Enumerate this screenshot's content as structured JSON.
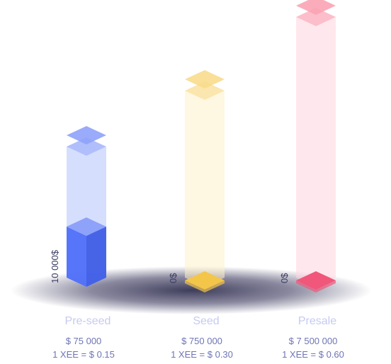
{
  "chart_data": {
    "type": "bar",
    "categories": [
      "Pre-seed",
      "Seed",
      "Presale"
    ],
    "series": [
      {
        "values": [
          75000,
          750000,
          7500000
        ]
      },
      {
        "values": [
          10000,
          0,
          0
        ]
      }
    ],
    "bars": [
      {
        "name": "Pre-seed",
        "target": "$ 75 000",
        "price": "1 XEE = $ 0.15",
        "raised": "10 000$",
        "raised_value": 10000,
        "goal_value": 75000,
        "color": "#4f6ff8",
        "light": "#b5c2fb",
        "cap": "#8ea2fa"
      },
      {
        "name": "Seed",
        "target": "$ 750 000",
        "price": "1 XEE = $ 0.30",
        "raised": "0$",
        "raised_value": 0,
        "goal_value": 750000,
        "color": "#f3c64a",
        "light": "#fdf1c8",
        "cap": "#f8dc8c"
      },
      {
        "name": "Presale",
        "target": "$ 7 500 000",
        "price": "1 XEE = $ 0.60",
        "raised": "0$",
        "raised_value": 0,
        "goal_value": 7500000,
        "color": "#f0577a",
        "light": "#ffd6de",
        "cap": "#fba3b4"
      }
    ]
  }
}
